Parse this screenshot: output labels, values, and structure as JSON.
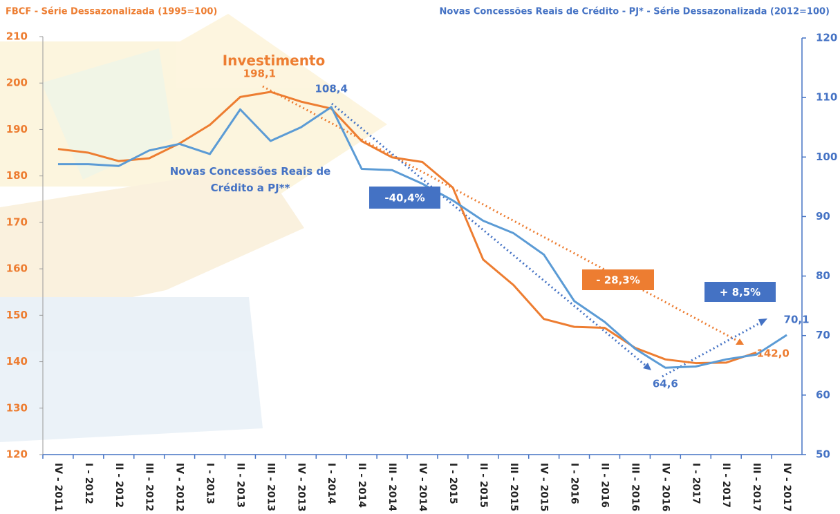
{
  "chart_data": {
    "type": "line",
    "y_axis_title": "FBCF - Série Dessazonalizada (1995=100)",
    "y2_axis_title": "Novas Concessões Reais de Crédito - PJ* - Série Dessazonalizada (2012=100)",
    "categories": [
      "IV - 2011",
      "I - 2012",
      "II - 2012",
      "III - 2012",
      "IV - 2012",
      "I - 2013",
      "II - 2013",
      "III - 2013",
      "IV - 2013",
      "I - 2014",
      "II - 2014",
      "III - 2014",
      "IV - 2014",
      "I - 2015",
      "II - 2015",
      "III - 2015",
      "IV - 2015",
      "I - 2016",
      "II - 2016",
      "III - 2016",
      "IV - 2016",
      "I - 2017",
      "II - 2017",
      "III - 2017",
      "IV - 2017"
    ],
    "series": [
      {
        "name": "Investimento",
        "color": "#ed7d31",
        "axis": "y",
        "values": [
          185.8,
          185.0,
          183.2,
          183.8,
          187.0,
          191.0,
          197.0,
          198.1,
          196.0,
          194.5,
          187.5,
          184.0,
          183.0,
          177.5,
          162.0,
          156.5,
          149.2,
          147.5,
          147.3,
          143.0,
          140.5,
          139.7,
          139.8,
          142.0,
          null
        ],
        "value_labels": [
          null,
          null,
          null,
          null,
          null,
          null,
          null,
          "198,1",
          null,
          null,
          null,
          null,
          null,
          null,
          null,
          null,
          null,
          null,
          null,
          null,
          null,
          null,
          null,
          "142,0",
          null
        ]
      },
      {
        "name": "Novas Concessões Reais de Crédito a PJ**",
        "color": "#5b9bd5",
        "axis": "y2",
        "values": [
          98.8,
          98.8,
          98.5,
          101.1,
          102.2,
          100.5,
          108.0,
          102.7,
          105.0,
          108.4,
          98.0,
          97.8,
          95.5,
          92.7,
          89.3,
          87.2,
          83.6,
          75.8,
          72.3,
          67.8,
          64.6,
          64.8,
          66.0,
          66.8,
          70.1
        ],
        "value_labels": [
          null,
          null,
          null,
          null,
          null,
          null,
          null,
          null,
          null,
          "108,4",
          null,
          null,
          null,
          null,
          null,
          null,
          null,
          null,
          null,
          null,
          "64,6",
          null,
          null,
          null,
          "70,1"
        ]
      }
    ],
    "annotations": [
      "-40,4%",
      "- 28,3%",
      "+ 8,5%"
    ],
    "ylim": [
      120,
      210
    ],
    "yticks": [
      120,
      130,
      140,
      150,
      160,
      170,
      180,
      190,
      200,
      210
    ],
    "y2lim": [
      50,
      120
    ],
    "y2ticks": [
      50,
      60,
      70,
      80,
      90,
      100,
      110,
      120
    ],
    "grid": false
  }
}
